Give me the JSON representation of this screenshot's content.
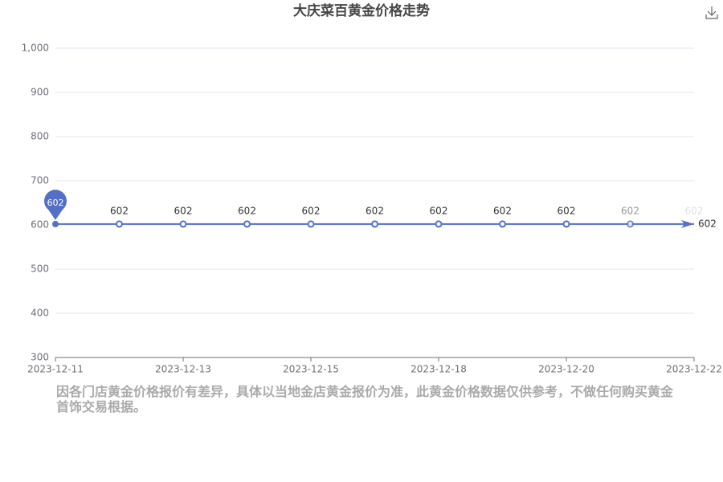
{
  "chart_data": {
    "type": "line",
    "title": "大庆菜百黄金价格走势",
    "categories": [
      "2023-12-11",
      null,
      "2023-12-13",
      null,
      "2023-12-15",
      null,
      "2023-12-18",
      null,
      "2023-12-20",
      null,
      "2023-12-22"
    ],
    "series": [
      {
        "name": "黄金价格",
        "color": "#5470c6",
        "values": [
          602,
          602,
          602,
          602,
          602,
          602,
          602,
          602,
          602,
          602,
          602
        ]
      }
    ],
    "ylim": [
      300,
      1000
    ],
    "yticks": [
      300,
      400,
      500,
      600,
      700,
      800,
      900,
      {
        "value": 1000,
        "label": "1,000"
      }
    ],
    "grid": true
  },
  "note": "因各门店黄金价格报价有差异，具体以当地金店黄金报价为准，此黄金价格数据仅供参考，不做任何购买黄金首饰交易根据。"
}
